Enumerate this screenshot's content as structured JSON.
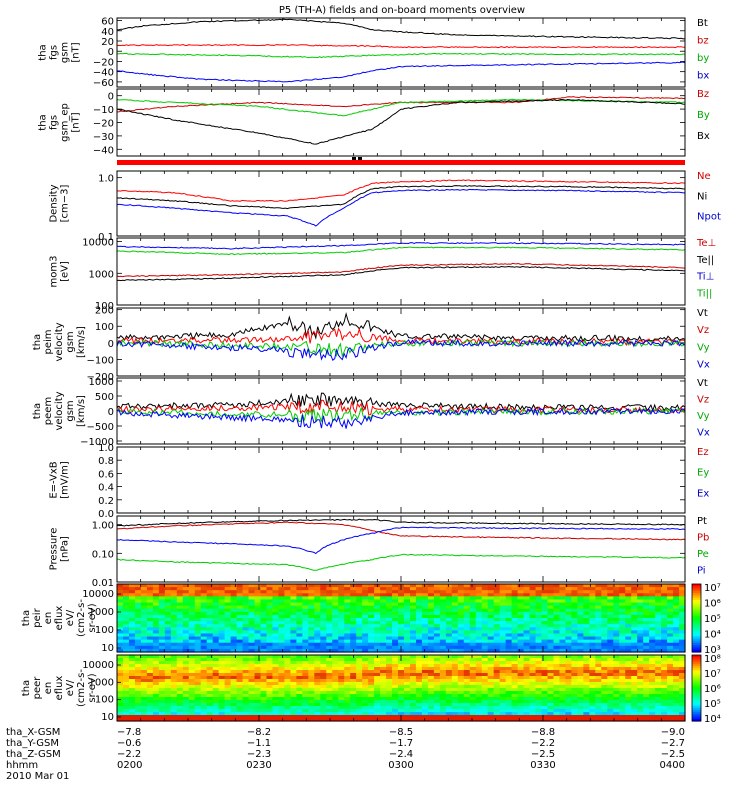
{
  "title": "P5 (TH-A) fields and on-board moments overview",
  "colors": {
    "black": "#000000",
    "red": "#ff0000",
    "green": "#00cc00",
    "blue": "#0000ff",
    "darkred": "#cc0000"
  },
  "chart_data": [
    {
      "type": "line",
      "ylabel": [
        "tha",
        "fgs",
        "gsm",
        "[nT]"
      ],
      "ylim": [
        -70,
        65
      ],
      "yticks": [
        "60",
        "40",
        "20",
        "0",
        "−20",
        "−40",
        "−60"
      ],
      "legend": [
        "Bt",
        "bz",
        "by",
        "bx"
      ],
      "series": [
        {
          "name": "Bt",
          "color": "#000000",
          "x": [
            0,
            0.05,
            0.15,
            0.3,
            0.4,
            0.45,
            0.5,
            0.6,
            0.8,
            1.0
          ],
          "y": [
            42,
            50,
            58,
            62,
            55,
            42,
            38,
            32,
            28,
            25
          ]
        },
        {
          "name": "bz",
          "color": "#ff0000",
          "x": [
            0,
            0.3,
            0.45,
            0.5,
            0.7,
            1.0
          ],
          "y": [
            12,
            12,
            10,
            8,
            8,
            8
          ]
        },
        {
          "name": "by",
          "color": "#00cc00",
          "x": [
            0,
            0.2,
            0.35,
            0.45,
            0.55,
            0.8,
            1.0
          ],
          "y": [
            -5,
            -8,
            -12,
            -8,
            -5,
            -6,
            -6
          ]
        },
        {
          "name": "bx",
          "color": "#0000ff",
          "x": [
            0,
            0.05,
            0.15,
            0.3,
            0.4,
            0.45,
            0.5,
            0.6,
            0.8,
            1.0
          ],
          "y": [
            -38,
            -45,
            -55,
            -60,
            -50,
            -38,
            -30,
            -28,
            -25,
            -22
          ]
        }
      ]
    },
    {
      "type": "line",
      "ylabel": [
        "tha",
        "fgs",
        "gsm_ep",
        "[nT]"
      ],
      "ylim": [
        -45,
        5
      ],
      "yticks": [
        "0",
        "−10",
        "−20",
        "−30",
        "−40"
      ],
      "legend": [
        "Bz",
        "By",
        "Bx"
      ],
      "series": [
        {
          "name": "Bz",
          "color": "#cc0000",
          "x": [
            0,
            0.1,
            0.25,
            0.4,
            0.5,
            0.7,
            0.8,
            1.0
          ],
          "y": [
            -12,
            -8,
            -5,
            -8,
            -5,
            -5,
            -1,
            -2
          ]
        },
        {
          "name": "By",
          "color": "#00cc00",
          "x": [
            0,
            0.1,
            0.25,
            0.4,
            0.5,
            0.7,
            1.0
          ],
          "y": [
            -3,
            -5,
            -8,
            -15,
            -5,
            -3,
            -5
          ]
        },
        {
          "name": "Bx",
          "color": "#000000",
          "x": [
            0,
            0.1,
            0.25,
            0.35,
            0.45,
            0.5,
            0.6,
            0.8,
            1.0
          ],
          "y": [
            -10,
            -18,
            -28,
            -36,
            -25,
            -10,
            -5,
            -3,
            -6
          ]
        }
      ]
    },
    {
      "type": "line",
      "log": true,
      "ylabel": [
        "Density",
        "[cm−3]"
      ],
      "ylim": [
        0.1,
        1.3
      ],
      "yticks": [
        "1.0",
        "0.1"
      ],
      "legend": [
        "Ne",
        "Ni",
        "Npot"
      ],
      "series": [
        {
          "name": "Ne",
          "color": "#ff0000",
          "x": [
            0,
            0.1,
            0.2,
            0.3,
            0.4,
            0.45,
            0.5,
            0.6,
            0.8,
            1.0
          ],
          "y": [
            0.6,
            0.55,
            0.4,
            0.4,
            0.5,
            0.8,
            0.85,
            0.9,
            0.85,
            0.8
          ]
        },
        {
          "name": "Ni",
          "color": "#000000",
          "x": [
            0,
            0.1,
            0.2,
            0.3,
            0.4,
            0.45,
            0.5,
            0.6,
            0.8,
            1.0
          ],
          "y": [
            0.45,
            0.4,
            0.33,
            0.3,
            0.35,
            0.65,
            0.7,
            0.72,
            0.7,
            0.65
          ]
        },
        {
          "name": "Npot",
          "color": "#0000ff",
          "x": [
            0,
            0.1,
            0.2,
            0.3,
            0.35,
            0.4,
            0.45,
            0.5,
            0.6,
            0.8,
            1.0
          ],
          "y": [
            0.35,
            0.3,
            0.25,
            0.22,
            0.15,
            0.3,
            0.55,
            0.6,
            0.62,
            0.6,
            0.55
          ]
        }
      ]
    },
    {
      "type": "line",
      "log": true,
      "ylabel": [
        "mom3",
        "[eV]"
      ],
      "ylim": [
        100,
        13000
      ],
      "yticks": [
        "10000",
        "1000",
        "100"
      ],
      "legend": [
        "Te⊥",
        "Te||",
        "Ti⊥",
        "Ti||"
      ],
      "series": [
        {
          "name": "Te⊥",
          "color": "#cc0000",
          "x": [
            0,
            0.2,
            0.4,
            0.5,
            0.7,
            1.0
          ],
          "y": [
            800,
            900,
            1100,
            1800,
            2000,
            1500
          ]
        },
        {
          "name": "Te||",
          "color": "#000000",
          "x": [
            0,
            0.2,
            0.4,
            0.5,
            0.7,
            1.0
          ],
          "y": [
            600,
            700,
            900,
            1500,
            1600,
            1200
          ]
        },
        {
          "name": "Ti⊥",
          "color": "#0000ff",
          "x": [
            0,
            0.2,
            0.4,
            0.5,
            0.7,
            1.0
          ],
          "y": [
            7000,
            6000,
            7500,
            9000,
            9000,
            8000
          ]
        },
        {
          "name": "Ti||",
          "color": "#00cc00",
          "x": [
            0,
            0.2,
            0.4,
            0.5,
            0.7,
            1.0
          ],
          "y": [
            5000,
            4000,
            4500,
            6500,
            6500,
            5500
          ]
        }
      ]
    },
    {
      "type": "line",
      "ylabel": [
        "tha",
        "peim",
        "velocity",
        "gsm",
        "[km/s]"
      ],
      "ylim": [
        -200,
        210
      ],
      "yticks": [
        "200",
        "100",
        "0",
        "−100",
        "−200"
      ],
      "legend": [
        "Vt",
        "Vz",
        "Vy",
        "Vx"
      ],
      "series": [
        {
          "name": "Vt",
          "color": "#000000",
          "x": [
            0,
            0.2,
            0.3,
            0.35,
            0.4,
            0.5,
            0.7,
            1.0
          ],
          "y": [
            30,
            50,
            120,
            60,
            150,
            40,
            30,
            25
          ]
        },
        {
          "name": "Vz",
          "color": "#ff0000",
          "x": [
            0,
            0.3,
            0.4,
            0.5,
            1.0
          ],
          "y": [
            10,
            20,
            60,
            10,
            5
          ]
        },
        {
          "name": "Vy",
          "color": "#00cc00",
          "x": [
            0,
            0.3,
            0.4,
            0.5,
            1.0
          ],
          "y": [
            0,
            -20,
            -40,
            0,
            -5
          ]
        },
        {
          "name": "Vx",
          "color": "#0000ff",
          "x": [
            0,
            0.3,
            0.35,
            0.4,
            0.5,
            1.0
          ],
          "y": [
            -5,
            -40,
            -80,
            -60,
            0,
            -5
          ]
        }
      ]
    },
    {
      "type": "line",
      "ylabel": [
        "tha",
        "peem",
        "velocity",
        "gsm",
        "[km/s]"
      ],
      "ylim": [
        -1100,
        1100
      ],
      "yticks": [
        "1000",
        "500",
        "0",
        "−500",
        "−1000"
      ],
      "legend": [
        "Vt",
        "Vz",
        "Vy",
        "Vx"
      ],
      "series": [
        {
          "name": "Vt",
          "color": "#000000",
          "x": [
            0,
            0.2,
            0.35,
            0.45,
            0.6,
            1.0
          ],
          "y": [
            150,
            200,
            400,
            250,
            150,
            100
          ]
        },
        {
          "name": "Vz",
          "color": "#ff0000",
          "x": [
            0,
            0.35,
            0.5,
            1.0
          ],
          "y": [
            50,
            150,
            50,
            30
          ]
        },
        {
          "name": "Vy",
          "color": "#00cc00",
          "x": [
            0,
            0.35,
            0.5,
            1.0
          ],
          "y": [
            0,
            -150,
            -50,
            0
          ]
        },
        {
          "name": "Vx",
          "color": "#0000ff",
          "x": [
            0,
            0.3,
            0.4,
            0.5,
            1.0
          ],
          "y": [
            -50,
            -300,
            -400,
            -50,
            0
          ]
        }
      ]
    },
    {
      "type": "line",
      "ylabel": [
        "E=-VxB",
        "[mV/m]"
      ],
      "ylim": [
        0,
        1
      ],
      "yticks": [
        "1.0",
        "0.8",
        "0.6",
        "0.4",
        "0.2",
        "0.0"
      ],
      "legend": [
        "Ez",
        "Ey",
        "Ex"
      ],
      "series": []
    },
    {
      "type": "line",
      "log": true,
      "ylabel": [
        "Pressure",
        "[nPa]"
      ],
      "ylim": [
        0.01,
        2
      ],
      "yticks": [
        "1.00",
        "0.10",
        "0.01"
      ],
      "legend": [
        "Pt",
        "Pb",
        "Pe",
        "Pi"
      ],
      "series": [
        {
          "name": "Pt",
          "color": "#000000",
          "x": [
            0,
            0.1,
            0.3,
            0.45,
            0.5,
            0.7,
            1.0
          ],
          "y": [
            0.9,
            1.1,
            1.4,
            1.5,
            1.2,
            1.1,
            1.0
          ]
        },
        {
          "name": "Pb",
          "color": "#cc0000",
          "x": [
            0,
            0.1,
            0.3,
            0.4,
            0.45,
            0.5,
            0.7,
            1.0
          ],
          "y": [
            0.7,
            0.9,
            1.2,
            1.0,
            0.6,
            0.4,
            0.35,
            0.3
          ]
        },
        {
          "name": "Pe",
          "color": "#00cc00",
          "x": [
            0,
            0.1,
            0.3,
            0.35,
            0.45,
            0.5,
            0.7,
            1.0
          ],
          "y": [
            0.06,
            0.05,
            0.04,
            0.025,
            0.06,
            0.09,
            0.08,
            0.07
          ]
        },
        {
          "name": "Pi",
          "color": "#0000ff",
          "x": [
            0,
            0.1,
            0.3,
            0.35,
            0.45,
            0.5,
            0.7,
            1.0
          ],
          "y": [
            0.3,
            0.25,
            0.18,
            0.1,
            0.5,
            0.8,
            0.75,
            0.7
          ]
        }
      ]
    },
    {
      "type": "heatmap",
      "ylabel": [
        "tha",
        "peir",
        "en",
        "eflux",
        "eV/",
        "(cm2-s-",
        "sr-eV)"
      ],
      "yticks": [
        "10000",
        "1000",
        "100",
        "10"
      ],
      "colorbar_ticks": [
        "10⁷",
        "10⁶",
        "10⁵",
        "10⁴",
        "10³"
      ]
    },
    {
      "type": "heatmap",
      "ylabel": [
        "tha",
        "peer",
        "en",
        "eflux",
        "eV/",
        "(cm2-s-",
        "sr-eV)"
      ],
      "yticks": [
        "10000",
        "1000",
        "100",
        "10"
      ],
      "colorbar_ticks": [
        "10⁸",
        "10⁷",
        "10⁶",
        "10⁵",
        "10⁴"
      ]
    }
  ],
  "xaxis": {
    "rows": [
      {
        "label": "tha_X-GSM",
        "values": [
          "−7.8",
          "−8.2",
          "−8.5",
          "−8.8",
          "−9.0"
        ]
      },
      {
        "label": "tha_Y-GSM",
        "values": [
          "−0.6",
          "−1.1",
          "−1.7",
          "−2.2",
          "−2.7"
        ]
      },
      {
        "label": "tha_Z-GSM",
        "values": [
          "−2.2",
          "−2.3",
          "−2.4",
          "−2.5",
          "−2.5"
        ]
      },
      {
        "label": "hhmm",
        "values": [
          "0200",
          "0230",
          "0300",
          "0330",
          "0400"
        ]
      }
    ],
    "date": "2010 Mar 01"
  }
}
